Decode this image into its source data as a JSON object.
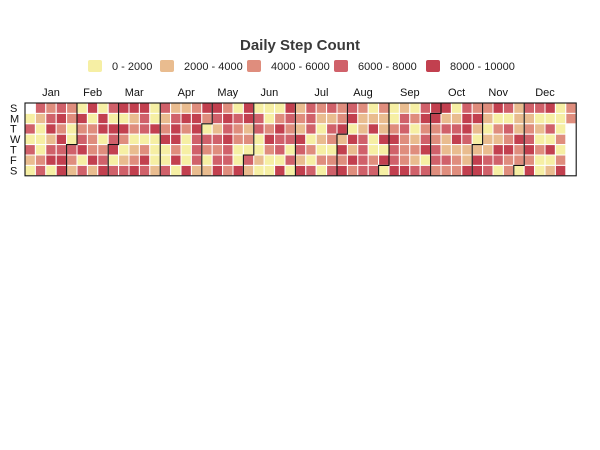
{
  "chart_data": {
    "type": "heatmap",
    "title": "Daily Step Count",
    "legend_position": "top",
    "legend": [
      {
        "label": "0 - 2000",
        "range": [
          0,
          2000
        ],
        "color": "#f6efa4"
      },
      {
        "label": "2000 - 4000",
        "range": [
          2000,
          4000
        ],
        "color": "#e9bc8f"
      },
      {
        "label": "4000 - 6000",
        "range": [
          4000,
          6000
        ],
        "color": "#df8d7d"
      },
      {
        "label": "6000 - 8000",
        "range": [
          6000,
          8000
        ],
        "color": "#d0616a"
      },
      {
        "label": "8000 - 10000",
        "range": [
          8000,
          10000
        ],
        "color": "#c2404f"
      }
    ],
    "months": [
      "Jan",
      "Feb",
      "Mar",
      "Apr",
      "May",
      "Jun",
      "Jul",
      "Aug",
      "Sep",
      "Oct",
      "Nov",
      "Dec"
    ],
    "weekdays": [
      "S",
      "M",
      "T",
      "W",
      "T",
      "F",
      "S"
    ],
    "start_weekday_index": 1,
    "month_lengths": [
      31,
      28,
      31,
      30,
      31,
      30,
      31,
      31,
      30,
      31,
      30,
      31
    ],
    "daily_bins": [
      "03031031000232341340342434422003210423403402224104402343043403404",
      "20134120124433024300400013124003134424014200042443331420320143132",
      "34243433203220044412031033001000242000243304432303012143143330203",
      "21010203132023224142434041422113333014002321140400024334133222402",
      "01213342340344223324131132013412234431142410144210113340214303032",
      "42211142203123424301020040304010002024222301342340034431320400440"
    ]
  }
}
